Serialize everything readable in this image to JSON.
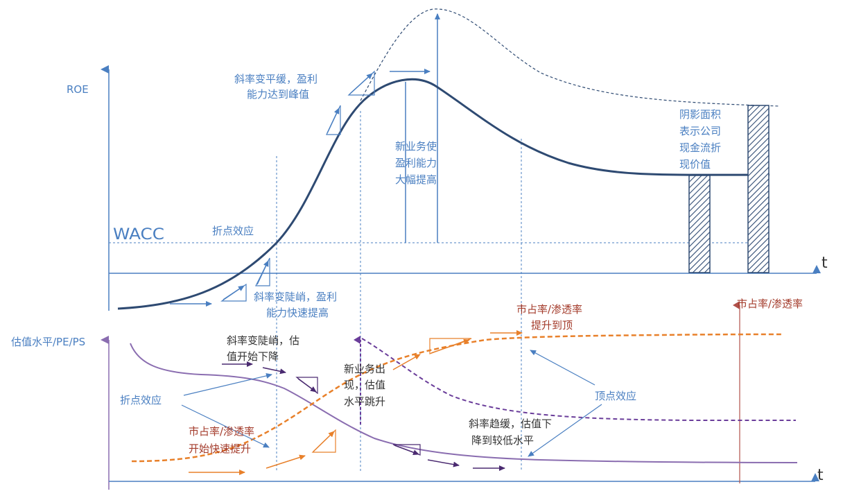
{
  "top_panel": {
    "y_axis_label": "ROE",
    "wacc_label": "WACC",
    "t_label": "t",
    "annotations": {
      "inflection_effect": "折点效应",
      "slope_flatten": [
        "斜率变平缓，盈利",
        "能力达到峰值"
      ],
      "slope_steep": [
        "斜率变陡峭，盈利",
        "能力快速提高"
      ],
      "new_business": [
        "新业务使",
        "盈利能力",
        "大幅提高"
      ],
      "shaded_area": [
        "阴影面积",
        "表示公司",
        "现金流折",
        "现价值"
      ]
    }
  },
  "bottom_panel": {
    "y_axis_label": "估值水平/PE/PS",
    "t_label": "t",
    "market_share_axis_label": "市占率/渗透率",
    "annotations": {
      "slope_steep_valuation": [
        "斜率变陡峭，估",
        "值开始下降"
      ],
      "inflection_effect": "折点效应",
      "share_fast_rise": [
        "市占率/渗透率",
        "开始快速提升"
      ],
      "new_business_jump": [
        "新业务出",
        "现，估值",
        "水平跳升"
      ],
      "share_top": [
        "市占率/渗透率",
        "提升到顶"
      ],
      "peak_effect": "顶点效应",
      "slope_flat_valuation": [
        "斜率趋缓，估值下",
        "降到较低水平"
      ]
    }
  },
  "colors": {
    "axis": "#4a7fc1",
    "roe_curve": "#2e4a72",
    "valuation_curve": "#8a6db0",
    "dashed_purple": "#6a3d9a",
    "share_curve": "#e8802a",
    "share_axis": "#b0504a",
    "red_text": "#a33a2a"
  }
}
